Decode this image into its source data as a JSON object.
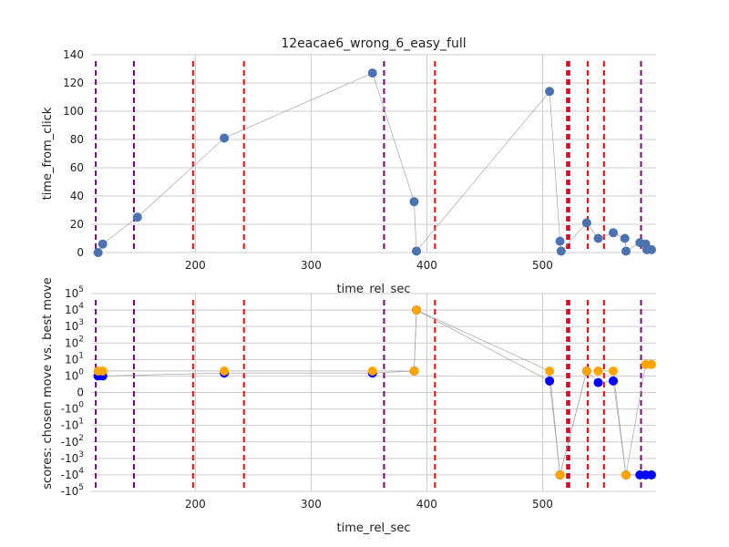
{
  "chart_data": [
    {
      "type": "scatter",
      "title": "12eacae6_wrong_6_easy_full",
      "xlabel": "time_rel_sec",
      "ylabel": "time_from_click",
      "xlim": [
        110,
        598
      ],
      "ylim": [
        0,
        140
      ],
      "x_ticks": [
        200,
        300,
        400,
        500
      ],
      "y_ticks": [
        0,
        20,
        40,
        60,
        80,
        100,
        120,
        140
      ],
      "grid": true,
      "colors": {
        "series": "#4c72b0",
        "line": "#999999",
        "red_line": "#ff0000",
        "purple_line": "#800080",
        "grid": "#cccccc"
      },
      "vlines_red": [
        198,
        242,
        407,
        521,
        522,
        539,
        553
      ],
      "vlines_purple": [
        114,
        147,
        363,
        523,
        585
      ],
      "series": [
        {
          "x": [
            116,
            120,
            150,
            225,
            353,
            389,
            391,
            506,
            515,
            516,
            538,
            548,
            561,
            571,
            572,
            584,
            589,
            590,
            594
          ],
          "y": [
            0,
            6,
            25,
            81,
            127,
            36,
            1,
            114,
            8,
            1,
            21,
            10,
            14,
            10,
            1,
            7,
            6,
            2,
            2
          ]
        }
      ]
    },
    {
      "type": "scatter",
      "title": "",
      "xlabel": "time_rel_sec",
      "ylabel": "scores: chosen move vs. best move",
      "xlim": [
        110,
        598
      ],
      "y_scale": "symlog",
      "ylim": [
        -100000,
        100000
      ],
      "x_ticks": [
        200,
        300,
        400,
        500
      ],
      "y_ticks": [
        "10^5",
        "10^4",
        "10^3",
        "10^2",
        "10^1",
        "10^0",
        "0",
        "-10^0",
        "-10^1",
        "-10^2",
        "-10^3",
        "-10^4",
        "-10^5"
      ],
      "grid": true,
      "colors": {
        "chosen": "#0000ff",
        "best": "#ffa500",
        "line": "#999999",
        "red_line": "#ff0000",
        "purple_line": "#800080",
        "grid": "#cccccc"
      },
      "vlines_red": [
        198,
        242,
        407,
        521,
        522,
        539,
        553
      ],
      "vlines_purple": [
        114,
        147,
        363,
        523,
        585
      ],
      "series": [
        {
          "x": [
            116,
            120,
            225,
            353,
            389,
            391,
            506,
            515,
            538,
            548,
            561,
            572,
            584,
            589,
            594
          ],
          "y": [
            1,
            1,
            1.5,
            1.5,
            2,
            10000,
            0.7,
            -10000,
            2,
            0.6,
            0.7,
            -10000,
            -10000,
            -10000,
            -10000
          ]
        },
        {
          "x": [
            116,
            120,
            225,
            353,
            389,
            391,
            506,
            515,
            538,
            548,
            561,
            572,
            589,
            594
          ],
          "y": [
            2,
            2,
            2,
            2,
            2,
            10000,
            2,
            -10000,
            2,
            2,
            2,
            -10000,
            5,
            5
          ]
        }
      ]
    }
  ]
}
